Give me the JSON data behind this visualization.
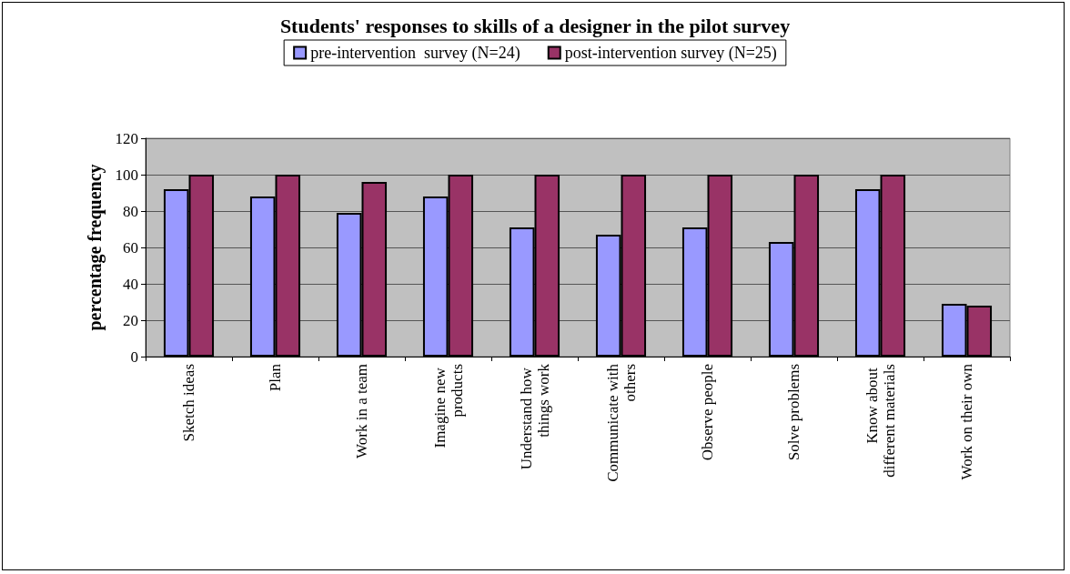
{
  "chart_data": {
    "type": "bar",
    "title": "Students' responses to skills of a designer in the pilot survey",
    "ylabel": "percentage frequency",
    "categories": [
      "Sketch ideas",
      "Plan",
      "Work in a team",
      "Imagine new products",
      "Understand how things work",
      "Communicate with others",
      "Observe people",
      "Solve problems",
      "Know about different materials",
      "Work on their own"
    ],
    "series": [
      {
        "name": "pre-intervention  survey (N=24)",
        "color": "#9999ff",
        "values": [
          92,
          88,
          79,
          88,
          71,
          67,
          71,
          63,
          92,
          29
        ]
      },
      {
        "name": "post-intervention survey (N=25)",
        "color": "#993366",
        "values": [
          100,
          100,
          96,
          100,
          100,
          100,
          100,
          100,
          100,
          28
        ]
      }
    ],
    "ylim": [
      0,
      120
    ],
    "yticks": [
      0,
      20,
      40,
      60,
      80,
      100,
      120
    ],
    "grid": "y",
    "legend": "top"
  }
}
